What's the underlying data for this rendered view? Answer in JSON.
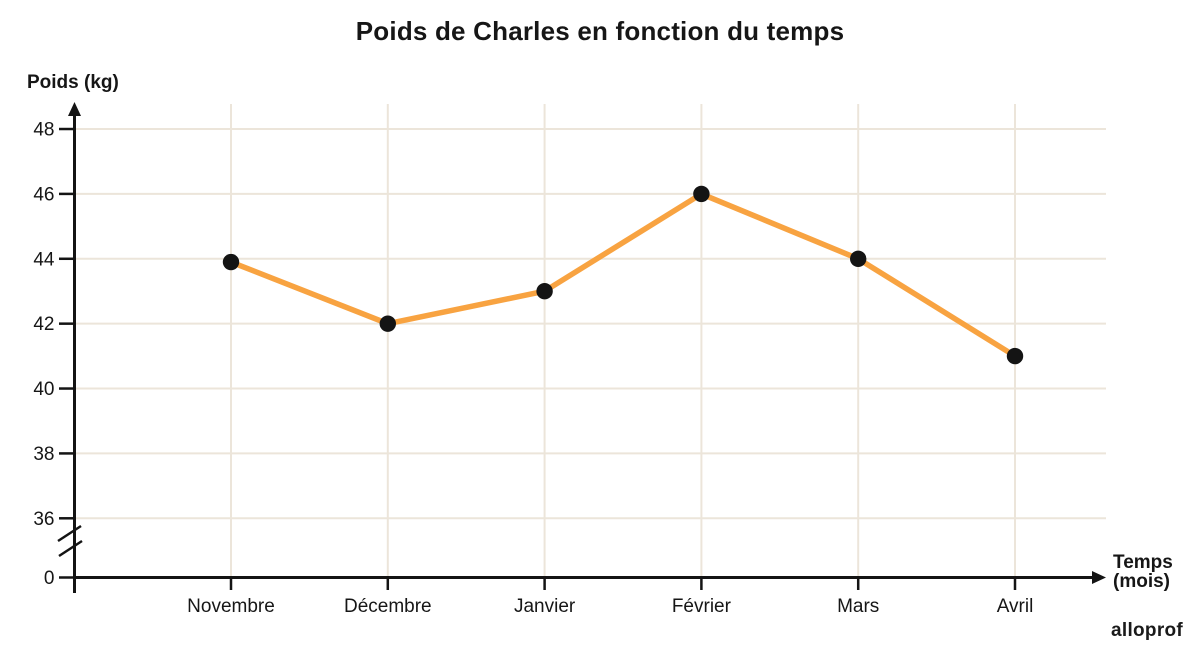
{
  "title": "Poids de Charles en fonction du temps",
  "y_axis": {
    "label": "Poids (kg)",
    "tick_labels": [
      "48",
      "46",
      "44",
      "42",
      "40",
      "38",
      "36"
    ],
    "origin_label": "0"
  },
  "x_axis": {
    "label_line1": "Temps",
    "label_line2": "(mois)"
  },
  "branding": {
    "logo_text": "alloprof"
  },
  "chart_data": {
    "type": "line",
    "title": "Poids de Charles en fonction du temps",
    "xlabel": "Temps (mois)",
    "ylabel": "Poids (kg)",
    "categories": [
      "Novembre",
      "Décembre",
      "Janvier",
      "Février",
      "Mars",
      "Avril"
    ],
    "values": [
      43.9,
      42,
      43,
      46,
      44,
      41
    ],
    "y_ticks": [
      48,
      46,
      44,
      42,
      40,
      38,
      36
    ],
    "y_origin": 0,
    "ylim": [
      36,
      48
    ],
    "axis_break": true,
    "grid": true,
    "legend": false,
    "colors": {
      "line": "#f8a341",
      "point": "#141414",
      "grid": "#ece5da",
      "axis": "#141414"
    }
  }
}
